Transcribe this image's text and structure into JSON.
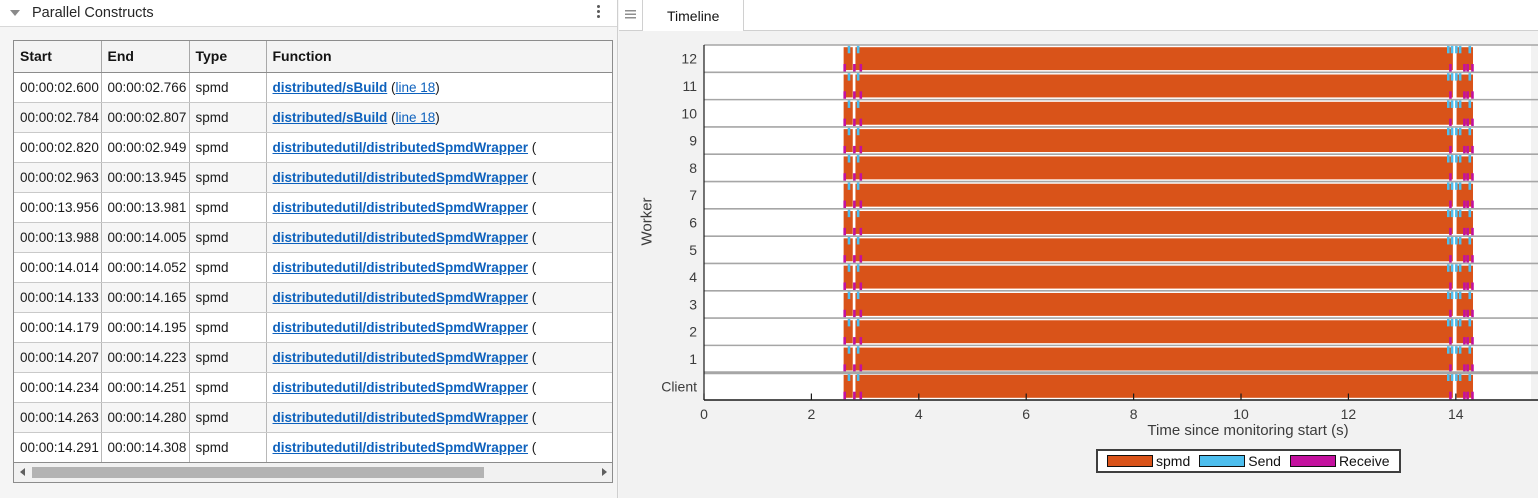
{
  "left_panel": {
    "title": "Parallel Constructs",
    "table": {
      "headers": [
        "Start",
        "End",
        "Type",
        "Function"
      ],
      "rows": [
        {
          "start": "00:00:02.600",
          "end": "00:00:02.766",
          "type": "spmd",
          "fn": "distributed/sBuild",
          "line": "line 18"
        },
        {
          "start": "00:00:02.784",
          "end": "00:00:02.807",
          "type": "spmd",
          "fn": "distributed/sBuild",
          "line": "line 18"
        },
        {
          "start": "00:00:02.820",
          "end": "00:00:02.949",
          "type": "spmd",
          "fn": "distributedutil/distributedSpmdWrapper",
          "line": null
        },
        {
          "start": "00:00:02.963",
          "end": "00:00:13.945",
          "type": "spmd",
          "fn": "distributedutil/distributedSpmdWrapper",
          "line": null
        },
        {
          "start": "00:00:13.956",
          "end": "00:00:13.981",
          "type": "spmd",
          "fn": "distributedutil/distributedSpmdWrapper",
          "line": null
        },
        {
          "start": "00:00:13.988",
          "end": "00:00:14.005",
          "type": "spmd",
          "fn": "distributedutil/distributedSpmdWrapper",
          "line": null
        },
        {
          "start": "00:00:14.014",
          "end": "00:00:14.052",
          "type": "spmd",
          "fn": "distributedutil/distributedSpmdWrapper",
          "line": null
        },
        {
          "start": "00:00:14.133",
          "end": "00:00:14.165",
          "type": "spmd",
          "fn": "distributedutil/distributedSpmdWrapper",
          "line": null
        },
        {
          "start": "00:00:14.179",
          "end": "00:00:14.195",
          "type": "spmd",
          "fn": "distributedutil/distributedSpmdWrapper",
          "line": null
        },
        {
          "start": "00:00:14.207",
          "end": "00:00:14.223",
          "type": "spmd",
          "fn": "distributedutil/distributedSpmdWrapper",
          "line": null
        },
        {
          "start": "00:00:14.234",
          "end": "00:00:14.251",
          "type": "spmd",
          "fn": "distributedutil/distributedSpmdWrapper",
          "line": null
        },
        {
          "start": "00:00:14.263",
          "end": "00:00:14.280",
          "type": "spmd",
          "fn": "distributedutil/distributedSpmdWrapper",
          "line": null
        },
        {
          "start": "00:00:14.291",
          "end": "00:00:14.308",
          "type": "spmd",
          "fn": "distributedutil/distributedSpmdWrapper",
          "line": null
        }
      ]
    }
  },
  "right_panel": {
    "tab_label": "Timeline"
  },
  "chart_data": {
    "type": "timeline",
    "xlabel": "Time since monitoring start (s)",
    "ylabel": "Worker",
    "xlim": [
      0,
      15.4
    ],
    "xticks": [
      0,
      2,
      4,
      6,
      8,
      10,
      12,
      14
    ],
    "rows": [
      "12",
      "11",
      "10",
      "9",
      "8",
      "7",
      "6",
      "5",
      "4",
      "3",
      "2",
      "1",
      "Client"
    ],
    "spmd_segments": [
      [
        2.6,
        2.77
      ],
      [
        2.82,
        13.945
      ],
      [
        14.014,
        14.32
      ]
    ],
    "send_marks": [
      2.7,
      2.87,
      13.86,
      13.93,
      14.01,
      14.08,
      14.26
    ],
    "receive_marks": [
      2.62,
      2.8,
      2.92,
      13.9,
      14.16,
      14.22,
      14.31
    ],
    "legend": [
      {
        "label": "spmd",
        "color": "#d95319"
      },
      {
        "label": "Send",
        "color": "#4dbeee"
      },
      {
        "label": "Receive",
        "color": "#c3119e"
      }
    ],
    "colors": {
      "separator": "#a6a6a6",
      "axis": "#1a1a1a",
      "tick_text": "#3c3c3c"
    }
  }
}
